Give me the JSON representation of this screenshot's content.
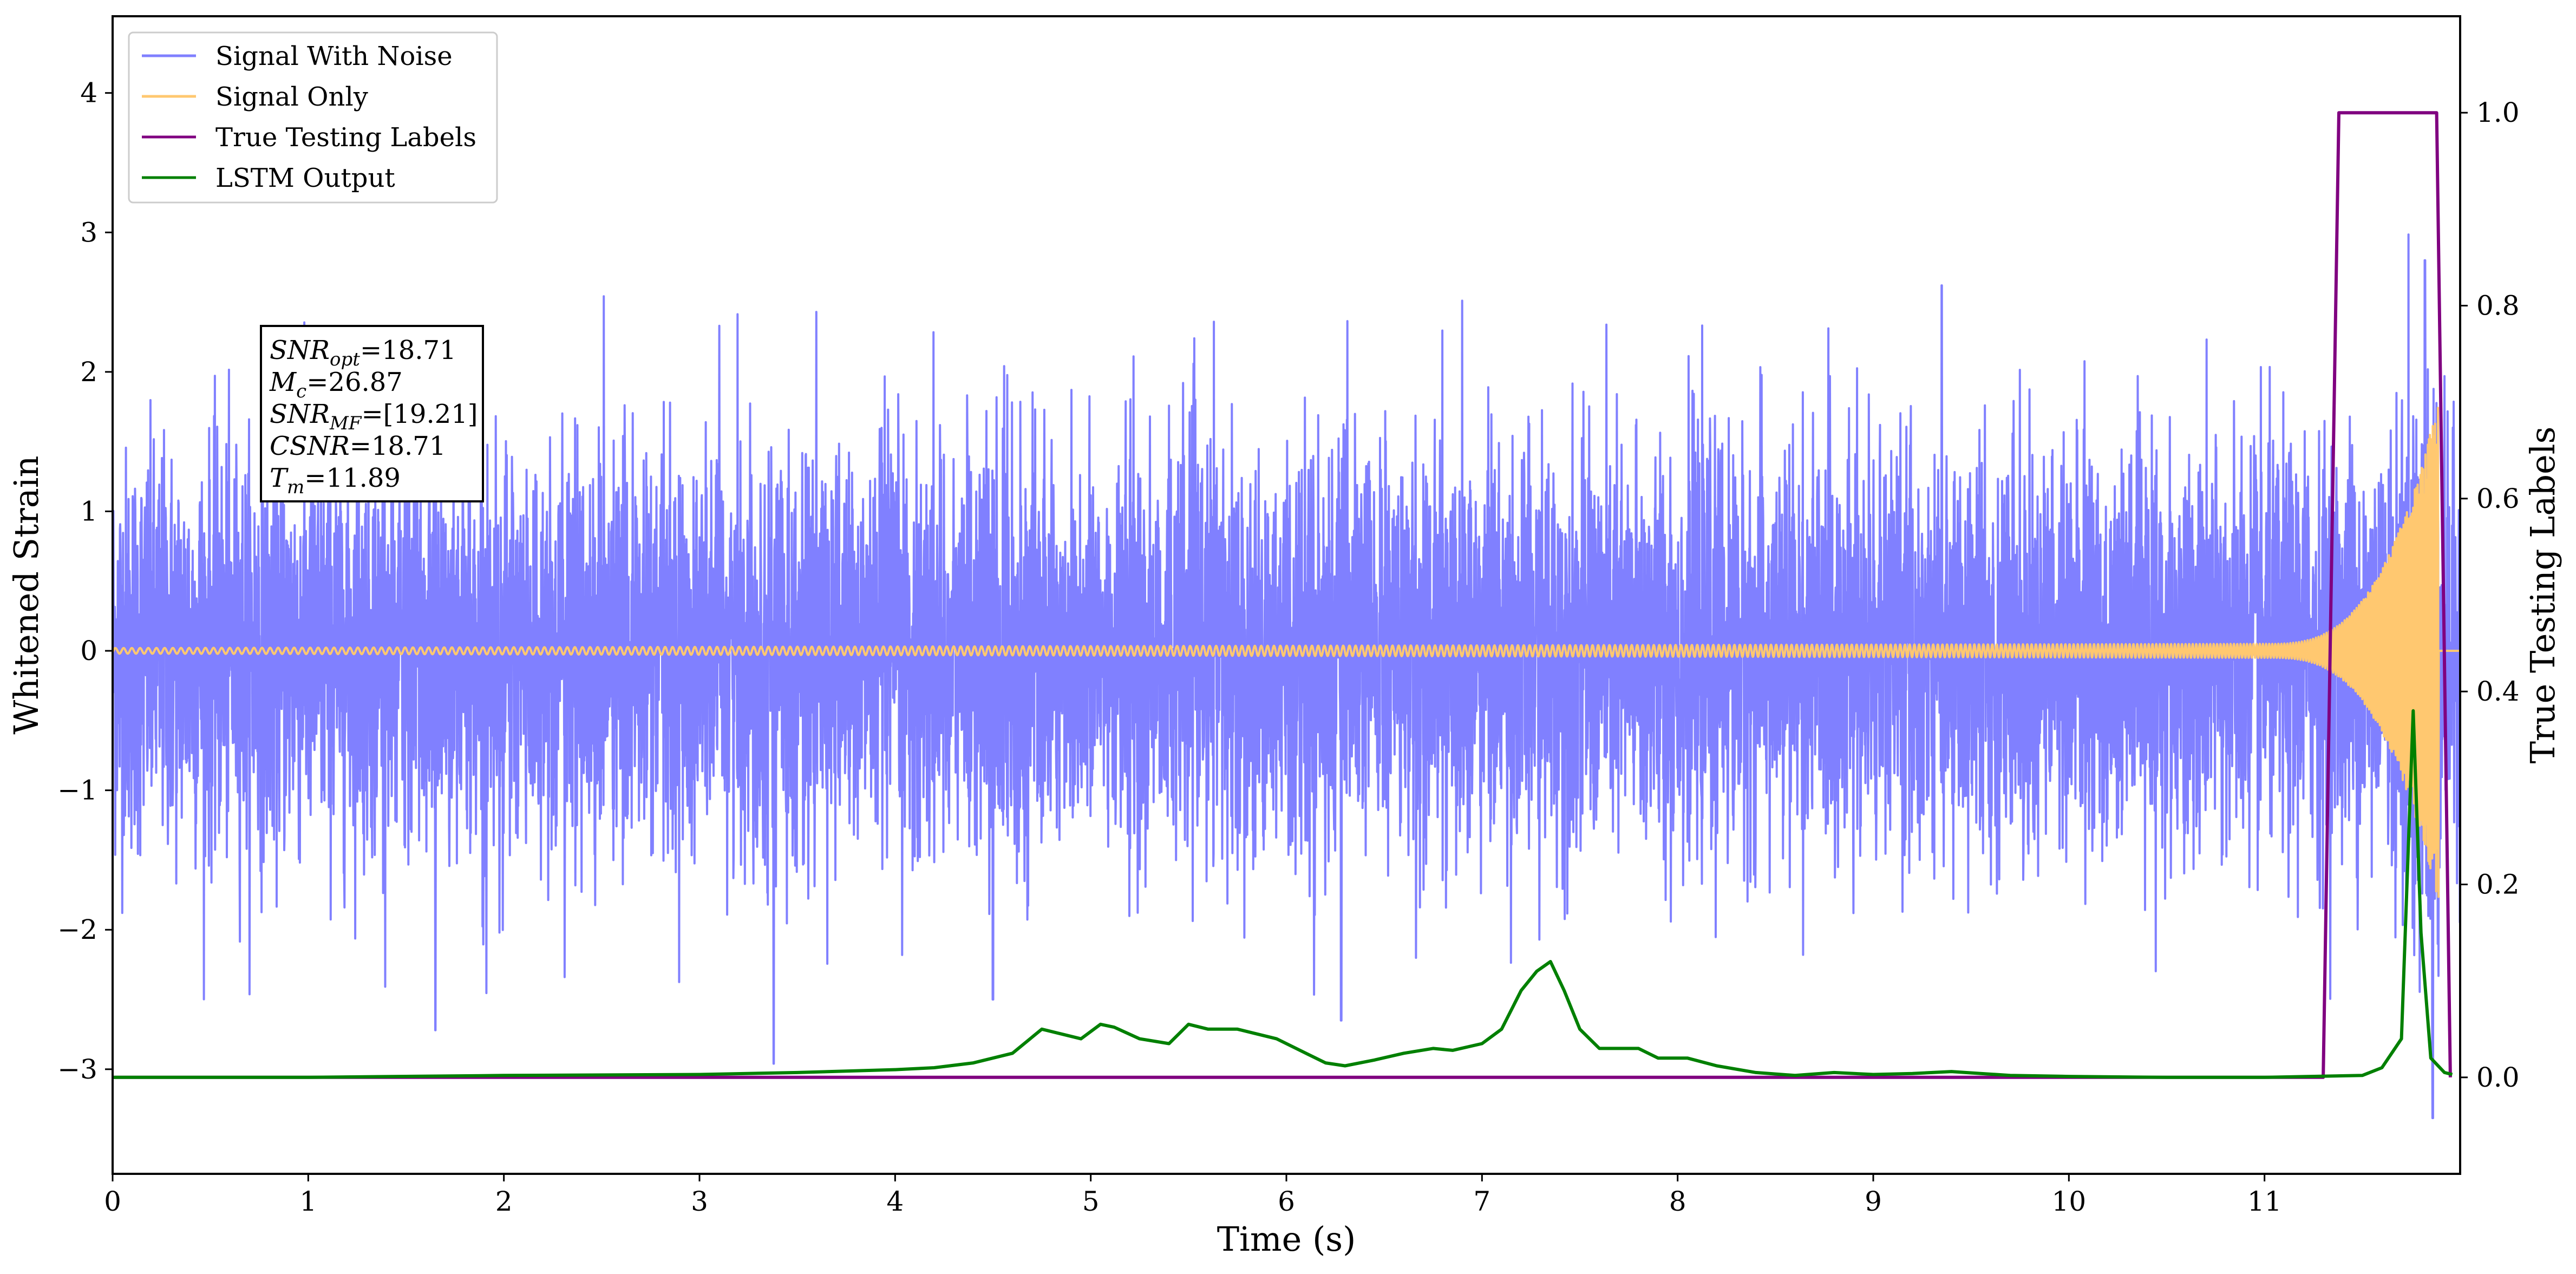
{
  "chart_data": {
    "type": "line",
    "xlabel": "Time (s)",
    "ylabel": "Whitened Strain",
    "y2label": "True Testing Labels",
    "xlim": [
      0,
      12.0
    ],
    "ylim": [
      -3.75,
      4.55
    ],
    "y2lim": [
      -0.1,
      1.1
    ],
    "x_ticks": [
      0,
      1,
      2,
      3,
      4,
      5,
      6,
      7,
      8,
      9,
      10,
      11
    ],
    "y_ticks": [
      -3,
      -2,
      -1,
      0,
      1,
      2,
      3,
      4
    ],
    "y2_ticks": [
      0.0,
      0.2,
      0.4,
      0.6,
      0.8,
      1.0
    ],
    "legend_position": "top-left",
    "grid": false,
    "annotation_box": {
      "lines": [
        {
          "sym": "SNR",
          "sub": "opt",
          "value": "=18.71"
        },
        {
          "sym": "M",
          "sub": "c",
          "value": "=26.87"
        },
        {
          "sym": "SNR",
          "sub": "MF",
          "value": "=[19.21]"
        },
        {
          "sym": "CSNR",
          "sub": "",
          "value": "=18.71"
        },
        {
          "sym": "T",
          "sub": "m",
          "value": "=11.89"
        }
      ]
    },
    "series": [
      {
        "name": "Signal With Noise",
        "color": "#8080ff",
        "axis": "left",
        "kind": "noise",
        "description_values": {
          "std": 0.72,
          "typical_peak_envelope": [
            -2.5,
            2.5
          ],
          "spikes": [
            {
              "x": 1.65,
              "y": -2.72
            },
            {
              "x": 3.38,
              "y": -2.96
            },
            {
              "x": 4.5,
              "y": -2.5
            },
            {
              "x": 6.28,
              "y": -2.65
            },
            {
              "x": 11.82,
              "y": 2.8
            },
            {
              "x": 11.86,
              "y": -3.35
            },
            {
              "x": 9.35,
              "y": 2.62
            }
          ]
        }
      },
      {
        "name": "Signal Only",
        "color": "#ffc870",
        "axis": "left",
        "kind": "chirp",
        "description_values": {
          "merger_time": 11.89,
          "amplitude_at_start": 0.02,
          "amplitude_at_11_5": 0.25,
          "amplitude_near_merger": 1.8
        }
      },
      {
        "name": "True Testing Labels",
        "color": "#800080",
        "axis": "right",
        "x": [
          0,
          11.3,
          11.38,
          11.88,
          11.95
        ],
        "y": [
          0.0,
          0.0,
          1.0,
          1.0,
          0.0
        ]
      },
      {
        "name": "LSTM Output",
        "color": "#008000",
        "axis": "right",
        "x": [
          0,
          1.0,
          2.0,
          3.0,
          3.5,
          4.0,
          4.2,
          4.4,
          4.6,
          4.75,
          4.85,
          4.95,
          5.05,
          5.12,
          5.25,
          5.4,
          5.5,
          5.6,
          5.75,
          5.85,
          5.95,
          6.1,
          6.2,
          6.3,
          6.45,
          6.6,
          6.75,
          6.85,
          7.0,
          7.1,
          7.2,
          7.28,
          7.35,
          7.42,
          7.5,
          7.6,
          7.8,
          7.9,
          8.05,
          8.2,
          8.4,
          8.6,
          8.8,
          9.0,
          9.2,
          9.4,
          9.55,
          9.7,
          10.0,
          10.5,
          11.0,
          11.5,
          11.6,
          11.7,
          11.76,
          11.8,
          11.85,
          11.92,
          11.96
        ],
        "y": [
          0.0,
          0.0,
          0.002,
          0.003,
          0.005,
          0.008,
          0.01,
          0.015,
          0.025,
          0.05,
          0.045,
          0.04,
          0.055,
          0.052,
          0.04,
          0.035,
          0.055,
          0.05,
          0.05,
          0.045,
          0.04,
          0.025,
          0.015,
          0.012,
          0.018,
          0.025,
          0.03,
          0.028,
          0.035,
          0.05,
          0.09,
          0.11,
          0.12,
          0.09,
          0.05,
          0.03,
          0.03,
          0.02,
          0.02,
          0.012,
          0.005,
          0.002,
          0.005,
          0.003,
          0.004,
          0.006,
          0.004,
          0.002,
          0.001,
          0.0,
          0.0,
          0.002,
          0.01,
          0.04,
          0.38,
          0.15,
          0.02,
          0.005,
          0.003
        ]
      }
    ]
  }
}
